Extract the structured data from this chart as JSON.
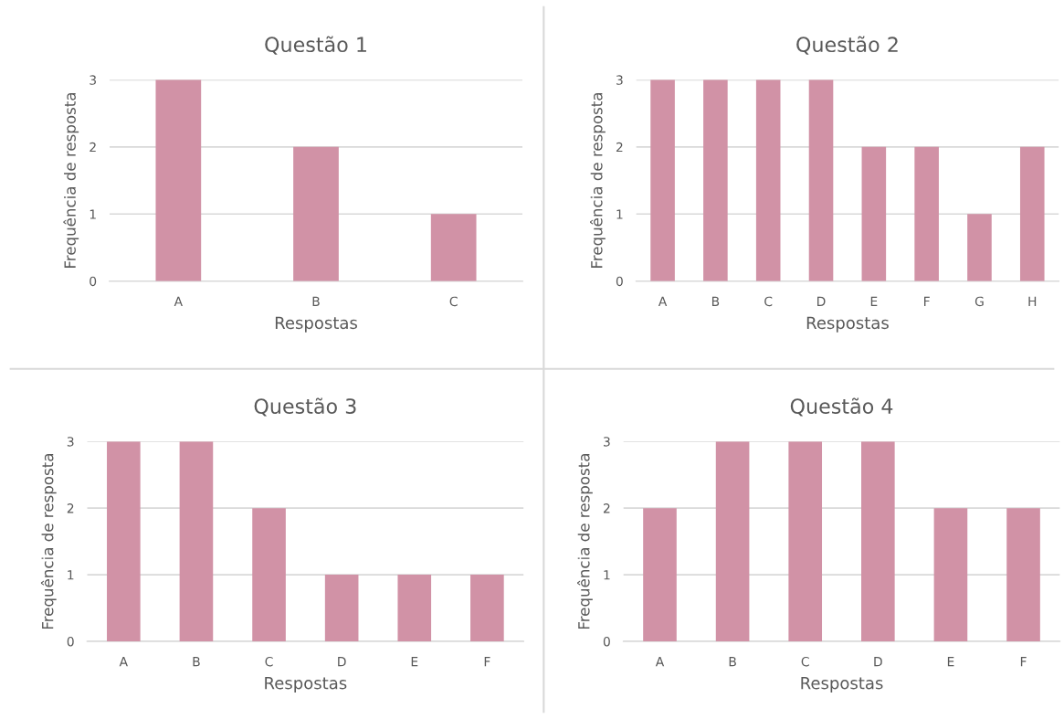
{
  "chart_data": [
    {
      "type": "bar",
      "title": "Questão 1",
      "xlabel": "Respostas",
      "ylabel": "Frequência de resposta",
      "categories": [
        "A",
        "B",
        "C"
      ],
      "values": [
        3,
        2,
        1
      ],
      "color": "#d192a6",
      "ylim": [
        0,
        3
      ],
      "yticks": [
        0,
        1,
        2,
        3
      ],
      "grid": "y",
      "legend": false
    },
    {
      "type": "bar",
      "title": "Questão 2",
      "xlabel": "Respostas",
      "ylabel": "Frequência de resposta",
      "categories": [
        "A",
        "B",
        "C",
        "D",
        "E",
        "F",
        "G",
        "H"
      ],
      "values": [
        3,
        3,
        3,
        3,
        2,
        2,
        1,
        2
      ],
      "color": "#d192a6",
      "ylim": [
        0,
        3
      ],
      "yticks": [
        0,
        1,
        2,
        3
      ],
      "grid": "y",
      "legend": false
    },
    {
      "type": "bar",
      "title": "Questão 3",
      "xlabel": "Respostas",
      "ylabel": "Frequência de resposta",
      "categories": [
        "A",
        "B",
        "C",
        "D",
        "E",
        "F"
      ],
      "values": [
        3,
        3,
        2,
        1,
        1,
        1
      ],
      "color": "#d192a6",
      "ylim": [
        0,
        3
      ],
      "yticks": [
        0,
        1,
        2,
        3
      ],
      "grid": "y",
      "legend": false
    },
    {
      "type": "bar",
      "title": "Questão 4",
      "xlabel": "Respostas",
      "ylabel": "Frequência de resposta",
      "categories": [
        "A",
        "B",
        "C",
        "D",
        "E",
        "F"
      ],
      "values": [
        2,
        3,
        3,
        3,
        2,
        2
      ],
      "color": "#d192a6",
      "ylim": [
        0,
        3
      ],
      "yticks": [
        0,
        1,
        2,
        3
      ],
      "grid": "y",
      "legend": false
    }
  ]
}
